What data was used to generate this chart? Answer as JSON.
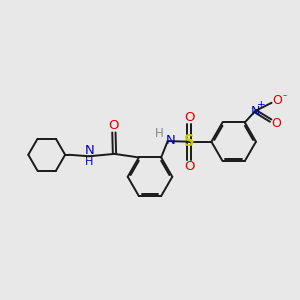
{
  "background_color": "#e8e8e8",
  "bond_color": "#1a1a1a",
  "bond_width": 1.4,
  "dbo": 0.055,
  "r_hex": 0.75,
  "colors": {
    "N": "#0000cc",
    "O": "#dd0000",
    "S": "#cccc00",
    "H": "#888888",
    "C_bond": "#1a1a1a"
  },
  "layout": {
    "central_benz": [
      5.1,
      4.8
    ],
    "nitro_benz": [
      7.2,
      6.6
    ],
    "cyclo": [
      1.8,
      4.7
    ]
  }
}
